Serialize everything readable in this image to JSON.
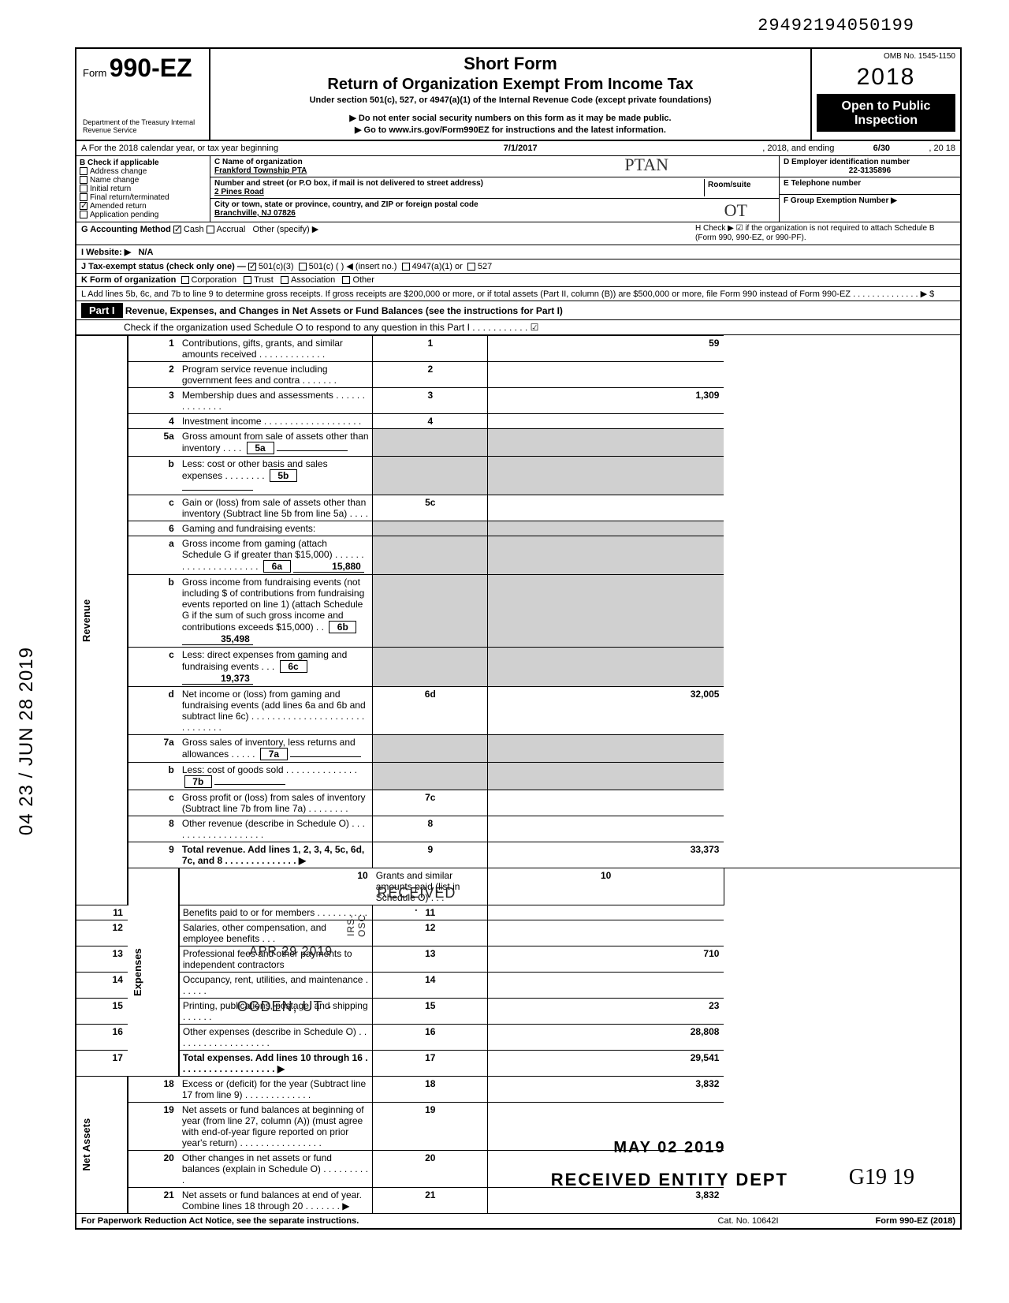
{
  "stamp_top": "29492194050199",
  "omb": "OMB No. 1545-1150",
  "form_prefix": "Form",
  "form_number": "990-EZ",
  "dept": "Department of the Treasury\nInternal Revenue Service",
  "short_form": "Short Form",
  "title": "Return of Organization Exempt From Income Tax",
  "under": "Under section 501(c), 527, or 4947(a)(1) of the Internal Revenue Code (except private foundations)",
  "ssn_note": "▶ Do not enter social security numbers on this form as it may be made public.",
  "goto": "▶ Go to www.irs.gov/Form990EZ for instructions and the latest information.",
  "year": "2018",
  "open": "Open to Public Inspection",
  "rowA": {
    "label": "A For the 2018 calendar year, or tax year beginning",
    "begin": "7/1/2017",
    "mid": ", 2018, and ending",
    "end": "6/30",
    "suffix": ", 20  18"
  },
  "colB": {
    "header": "B Check if applicable",
    "items": [
      "Address change",
      "Name change",
      "Initial return",
      "Final return/terminated",
      "Amended return",
      "Application pending"
    ],
    "checked_index": 4
  },
  "colC": {
    "name_header": "C Name of organization",
    "name": "Frankford Township PTA",
    "hand_ptan": "PTAN",
    "addr_header": "Number and street (or P.O box, if mail is not delivered to street address)",
    "addr": "2 Pines Road",
    "room_header": "Room/suite",
    "city_header": "City or town, state or province, country, and ZIP or foreign postal code",
    "city": "Branchville, NJ 07826"
  },
  "colD": {
    "ein_header": "D Employer identification number",
    "ein": "22-3135896",
    "tel_header": "E Telephone number",
    "tel": "",
    "group_header": "F Group Exemption Number ▶",
    "group": ""
  },
  "rowG": {
    "label": "G Accounting Method",
    "cash": "Cash",
    "accrual": "Accrual",
    "other": "Other (specify) ▶",
    "cash_checked": true
  },
  "rowH": "H Check ▶ ☑ if the organization is not required to attach Schedule B (Form 990, 990-EZ, or 990-PF).",
  "rowI": {
    "label": "I Website: ▶",
    "value": "N/A"
  },
  "rowJ": {
    "label": "J Tax-exempt status (check only one) —",
    "c3": "501(c)(3)",
    "c": "501(c) (      ) ◀ (insert no.)",
    "a1": "4947(a)(1) or",
    "s527": "527",
    "c3_checked": true
  },
  "rowK": {
    "label": "K Form of organization",
    "items": [
      "Corporation",
      "Trust",
      "Association",
      "Other"
    ]
  },
  "rowL": "L Add lines 5b, 6c, and 7b to line 9 to determine gross receipts. If gross receipts are $200,000 or more, or if total assets (Part II, column (B)) are $500,000 or more, file Form 990 instead of Form 990-EZ . . . . . . . . . . . . . . ▶  $",
  "part1": {
    "header": "Part I",
    "title": "Revenue, Expenses, and Changes in Net Assets or Fund Balances (see the instructions for Part I)",
    "schedO": "Check if the organization used Schedule O to respond to any question in this Part I . . . . . . . . . . . ☑"
  },
  "side_revenue": "Revenue",
  "side_expenses": "Expenses",
  "side_net": "Net Assets",
  "lines": {
    "l1": {
      "n": "1",
      "d": "Contributions, gifts, grants, and similar amounts received . . . . . . . . . . . . .",
      "box": "1",
      "amt": "59"
    },
    "l2": {
      "n": "2",
      "d": "Program service revenue including government fees and contra     . . . . . . .",
      "box": "2",
      "amt": ""
    },
    "l3": {
      "n": "3",
      "d": "Membership dues and assessments . . . . . . . . .        . . . . .",
      "box": "3",
      "amt": "1,309"
    },
    "l4": {
      "n": "4",
      "d": "Investment income  . . . . . . . . . . . . . .        . . . . .",
      "box": "4",
      "amt": ""
    },
    "l5a": {
      "n": "5a",
      "d": "Gross amount from sale of assets other than inventory  . . . .",
      "ib": "5a",
      "ia": ""
    },
    "l5b": {
      "n": "b",
      "d": "Less: cost or other basis and sales expenses . . . . . . . .",
      "ib": "5b",
      "ia": ""
    },
    "l5c": {
      "n": "c",
      "d": "Gain or (loss) from sale of assets other than inventory (Subtract line 5b from line 5a) . . . .",
      "box": "5c",
      "amt": ""
    },
    "l6": {
      "n": "6",
      "d": "Gaming and fundraising events:"
    },
    "l6a": {
      "n": "a",
      "d": "Gross income from gaming (attach Schedule G if greater than $15,000) . . . . . . . . . . . . . . . . . . . . .",
      "ib": "6a",
      "ia": "15,880"
    },
    "l6b": {
      "n": "b",
      "d": "Gross income from fundraising events (not including  $               of contributions from fundraising events reported on line 1) (attach Schedule G if the sum of such gross income and contributions exceeds $15,000) . .",
      "ib": "6b",
      "ia": "35,498"
    },
    "l6c": {
      "n": "c",
      "d": "Less: direct expenses from gaming and fundraising events  . . .",
      "ib": "6c",
      "ia": "19,373"
    },
    "l6d": {
      "n": "d",
      "d": "Net income or (loss) from gaming and fundraising events (add lines 6a and 6b and subtract line 6c)  . . . . . . . . . . . . . . . . . . . . . . . . . . . . . .",
      "box": "6d",
      "amt": "32,005"
    },
    "l7a": {
      "n": "7a",
      "d": "Gross sales of inventory, less returns and allowances . . . . .",
      "ib": "7a",
      "ia": ""
    },
    "l7b": {
      "n": "b",
      "d": "Less: cost of goods sold   . . . . . . . . . . . . . .",
      "ib": "7b",
      "ia": ""
    },
    "l7c": {
      "n": "c",
      "d": "Gross profit or (loss) from sales of inventory (Subtract line 7b from line 7a) . . . . . . . .",
      "box": "7c",
      "amt": ""
    },
    "l8": {
      "n": "8",
      "d": "Other revenue (describe in Schedule O) . . . . . . . . . . . . . . . . . . .",
      "box": "8",
      "amt": ""
    },
    "l9": {
      "n": "9",
      "d": "Total revenue. Add lines 1, 2, 3, 4, 5c, 6d, 7c, and 8  . . . . . . . . . . . . . . ▶",
      "box": "9",
      "amt": "33,373"
    },
    "l10": {
      "n": "10",
      "d": "Grants and similar amounts paid (list in Schedule O)  . . .",
      "box": "10",
      "amt": ""
    },
    "l11": {
      "n": "11",
      "d": "Benefits paid to or for members . . . . . . . . . .",
      "box": "11",
      "amt": ""
    },
    "l12": {
      "n": "12",
      "d": "Salaries, other compensation, and employee benefits . . .",
      "box": "12",
      "amt": ""
    },
    "l13": {
      "n": "13",
      "d": "Professional fees and other payments to independent contractors",
      "box": "13",
      "amt": "710"
    },
    "l14": {
      "n": "14",
      "d": "Occupancy, rent, utilities, and maintenance  . . . . . .",
      "box": "14",
      "amt": ""
    },
    "l15": {
      "n": "15",
      "d": "Printing, publications, postage, and shipping . . . . . .",
      "box": "15",
      "amt": "23"
    },
    "l16": {
      "n": "16",
      "d": "Other expenses (describe in Schedule O) . . . . . . . . . . . . . . . . . . .",
      "box": "16",
      "amt": "28,808"
    },
    "l17": {
      "n": "17",
      "d": "Total expenses. Add lines 10 through 16 . . . . . . . . . . . . . . . . . . . ▶",
      "box": "17",
      "amt": "29,541"
    },
    "l18": {
      "n": "18",
      "d": "Excess or (deficit) for the year (Subtract line 17 from line 9)  . . . . . . . . . . . . .",
      "box": "18",
      "amt": "3,832"
    },
    "l19": {
      "n": "19",
      "d": "Net assets or fund balances at beginning of year (from line 27, column (A)) (must agree with end-of-year figure reported on prior year's return)  . . . . . . . . . . . . . . . .",
      "box": "19",
      "amt": ""
    },
    "l20": {
      "n": "20",
      "d": "Other changes in net assets or fund balances (explain in Schedule O) . . . . . . . . . .",
      "box": "20",
      "amt": ""
    },
    "l21": {
      "n": "21",
      "d": "Net assets or fund balances at end of year. Combine lines 18 through 20  . . . . . . . ▶",
      "box": "21",
      "amt": "3,832"
    }
  },
  "footer": {
    "left": "For Paperwork Reduction Act Notice, see the separate instructions.",
    "mid": "Cat. No. 10642I",
    "right": "Form 990-EZ (2018)"
  },
  "left_margin_date": "04 23 / JUN 28 2019",
  "stamp_received": "· RECEIVED ·",
  "stamp_apr": "APR 29 2019",
  "stamp_irs": "IRS-OSC",
  "stamp_ogden": "· OGDEN, UT ·",
  "bottom_may": "MAY 02 2019",
  "bottom_received": "RECEIVED ENTITY DEPT",
  "bottom_hand": "G19  19",
  "hand_ot": "OT"
}
